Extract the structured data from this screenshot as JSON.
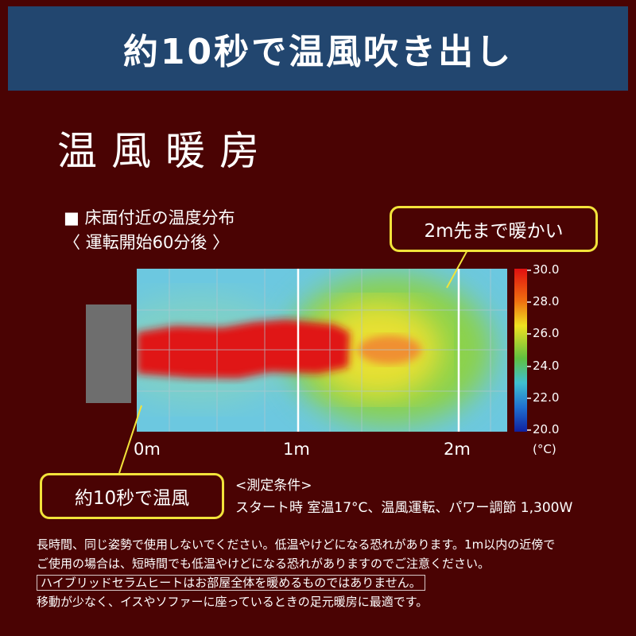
{
  "header": {
    "headline": "約10秒で温風吹き出し",
    "bg_color": "#22466f"
  },
  "title": "温風暖房",
  "subtitle": {
    "line1": "■ 床面付近の温度分布",
    "line2": "〈 運転開始60分後 〉"
  },
  "callouts": {
    "top_right": "2m先まで暖かい",
    "bottom_left": "約10秒で温風",
    "border_color": "#f2e33a"
  },
  "heatmap": {
    "x_ticks": [
      "0m",
      "1m",
      "2m"
    ],
    "colorbar": {
      "labels": [
        "30.0",
        "28.0",
        "26.0",
        "24.0",
        "22.0",
        "20.0"
      ],
      "unit": "(°C)",
      "min": 20.0,
      "max": 30.0
    }
  },
  "conditions": {
    "heading": "<測定条件>",
    "text": "スタート時 室温17°C、温風運転、パワー調節 1,300W"
  },
  "notes": {
    "line1": "長時間、同じ姿勢で使用しないでください。低温やけどになる恐れがあります。1m以内の近傍で",
    "line2": "ご使用の場合は、短時間でも低温やけどになる恐れがありますのでご注意ください。",
    "line3": "ハイブリッドセラムヒートはお部屋全体を暖めるものではありません。",
    "line4": "移動が少なく、イスやソファーに座っているときの足元暖房に最適です。"
  }
}
